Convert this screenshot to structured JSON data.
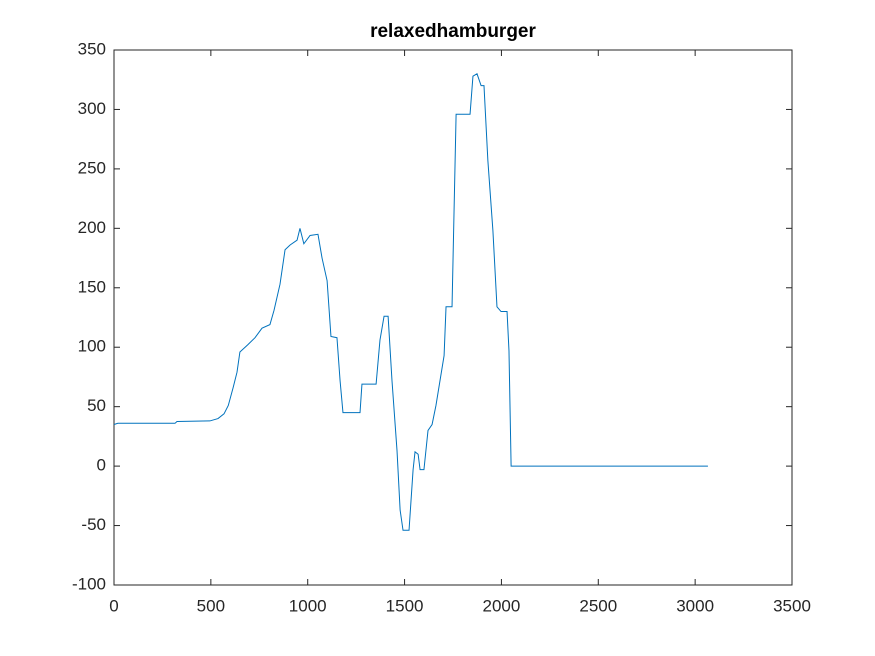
{
  "chart_data": {
    "type": "line",
    "title": "relaxedhamburger",
    "x": [
      0,
      20,
      315,
      325,
      495,
      537,
      568,
      590,
      615,
      635,
      650,
      690,
      728,
      764,
      805,
      826,
      857,
      883,
      909,
      945,
      960,
      980,
      1012,
      1053,
      1074,
      1100,
      1120,
      1151,
      1167,
      1182,
      1270,
      1280,
      1353,
      1373,
      1394,
      1415,
      1435,
      1461,
      1477,
      1492,
      1523,
      1544,
      1554,
      1570,
      1580,
      1600,
      1621,
      1642,
      1662,
      1683,
      1704,
      1714,
      1745,
      1766,
      1838,
      1853,
      1874,
      1895,
      1910,
      1930,
      1956,
      1977,
      1998,
      2029,
      2039,
      2050,
      3066
    ],
    "series": [
      {
        "color": "#0072bd",
        "values": [
          35,
          36,
          36,
          37.5,
          38,
          40,
          44,
          51,
          66,
          79,
          96,
          102,
          108,
          116,
          119,
          131,
          153,
          182,
          186,
          190,
          200,
          187,
          194,
          195,
          175,
          156,
          109,
          108,
          72,
          45,
          45,
          69,
          69,
          106,
          126,
          126,
          72,
          13,
          -37,
          -54,
          -54,
          -3,
          12,
          10,
          -3,
          -3,
          30,
          35,
          51,
          72,
          93,
          134,
          134,
          296,
          296,
          328,
          330,
          320,
          320,
          257,
          198,
          134,
          130,
          130,
          97,
          0,
          0
        ]
      }
    ],
    "xlim": [
      0,
      3500
    ],
    "xticks": [
      0,
      500,
      1000,
      1500,
      2000,
      2500,
      3000,
      3500
    ],
    "ylim": [
      -100,
      350
    ],
    "yticks": [
      -100,
      -50,
      0,
      50,
      100,
      150,
      200,
      250,
      300,
      350
    ],
    "grid": false
  }
}
